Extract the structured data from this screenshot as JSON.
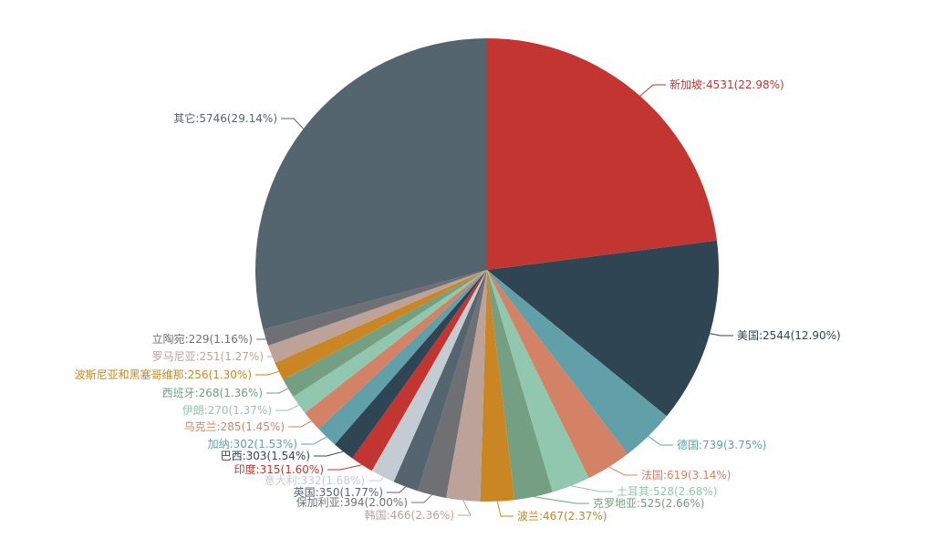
{
  "chart_data": {
    "type": "pie",
    "categories": [
      "新加坡",
      "美国",
      "德国",
      "法国",
      "土耳其",
      "克罗地亚",
      "波兰",
      "韩国",
      "保加利亚",
      "英国",
      "意大利",
      "印度",
      "巴西",
      "加纳",
      "乌克兰",
      "伊朗",
      "西班牙",
      "波斯尼亚和黑塞哥维那",
      "罗马尼亚",
      "立陶宛",
      "其它"
    ],
    "values": [
      4531,
      2544,
      739,
      619,
      528,
      525,
      467,
      466,
      394,
      350,
      332,
      315,
      303,
      302,
      285,
      270,
      268,
      256,
      251,
      229,
      5746
    ],
    "labels": [
      "新加坡:4531(22.98%)",
      "美国:2544(12.90%)",
      "德国:739(3.75%)",
      "法国:619(3.14%)",
      "土耳其:528(2.68%)",
      "克罗地亚:525(2.66%)",
      "波兰:467(2.37%)",
      "韩国:466(2.36%)",
      "保加利亚:394(2.00%)",
      "英国:350(1.77%)",
      "意大利:332(1.68%)",
      "印度:315(1.60%)",
      "巴西:303(1.54%)",
      "加纳:302(1.53%)",
      "乌克兰:285(1.45%)",
      "伊朗:270(1.37%)",
      "西班牙:268(1.36%)",
      "波斯尼亚和黑塞哥维那:256(1.30%)",
      "罗马尼亚:251(1.27%)",
      "立陶宛:229(1.16%)",
      "其它:5746(29.14%)"
    ],
    "colors": [
      "#c23531",
      "#2f4554",
      "#61a0a8",
      "#d48265",
      "#91c7ae",
      "#749f83",
      "#ca8622",
      "#bda29a",
      "#6e7074",
      "#546570",
      "#c4ccd3",
      "#c23531",
      "#2f4554",
      "#61a0a8",
      "#d48265",
      "#91c7ae",
      "#749f83",
      "#ca8622",
      "#bda29a",
      "#6e7074",
      "#546570"
    ]
  }
}
